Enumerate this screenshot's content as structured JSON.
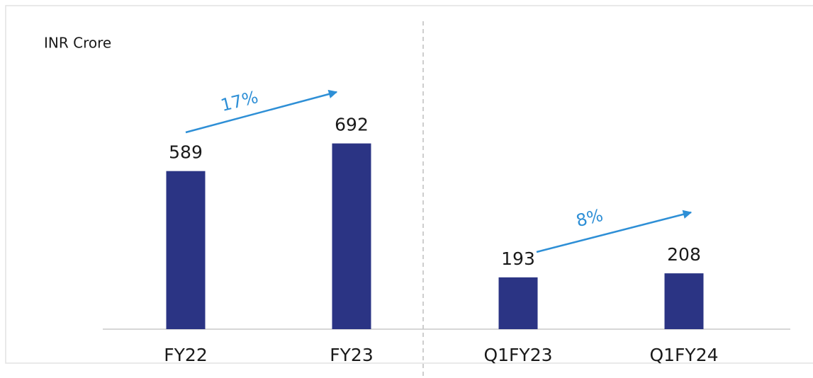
{
  "chart_data": {
    "type": "bar",
    "y_label": "INR Crore",
    "categories": [
      "FY22",
      "FY23",
      "Q1FY23",
      "Q1FY24"
    ],
    "values": [
      589,
      692,
      193,
      208
    ],
    "color": "#2b3484",
    "ylim": [
      0,
      1200
    ],
    "annotations": [
      {
        "text": "17%"
      },
      {
        "text": "8%"
      }
    ]
  }
}
